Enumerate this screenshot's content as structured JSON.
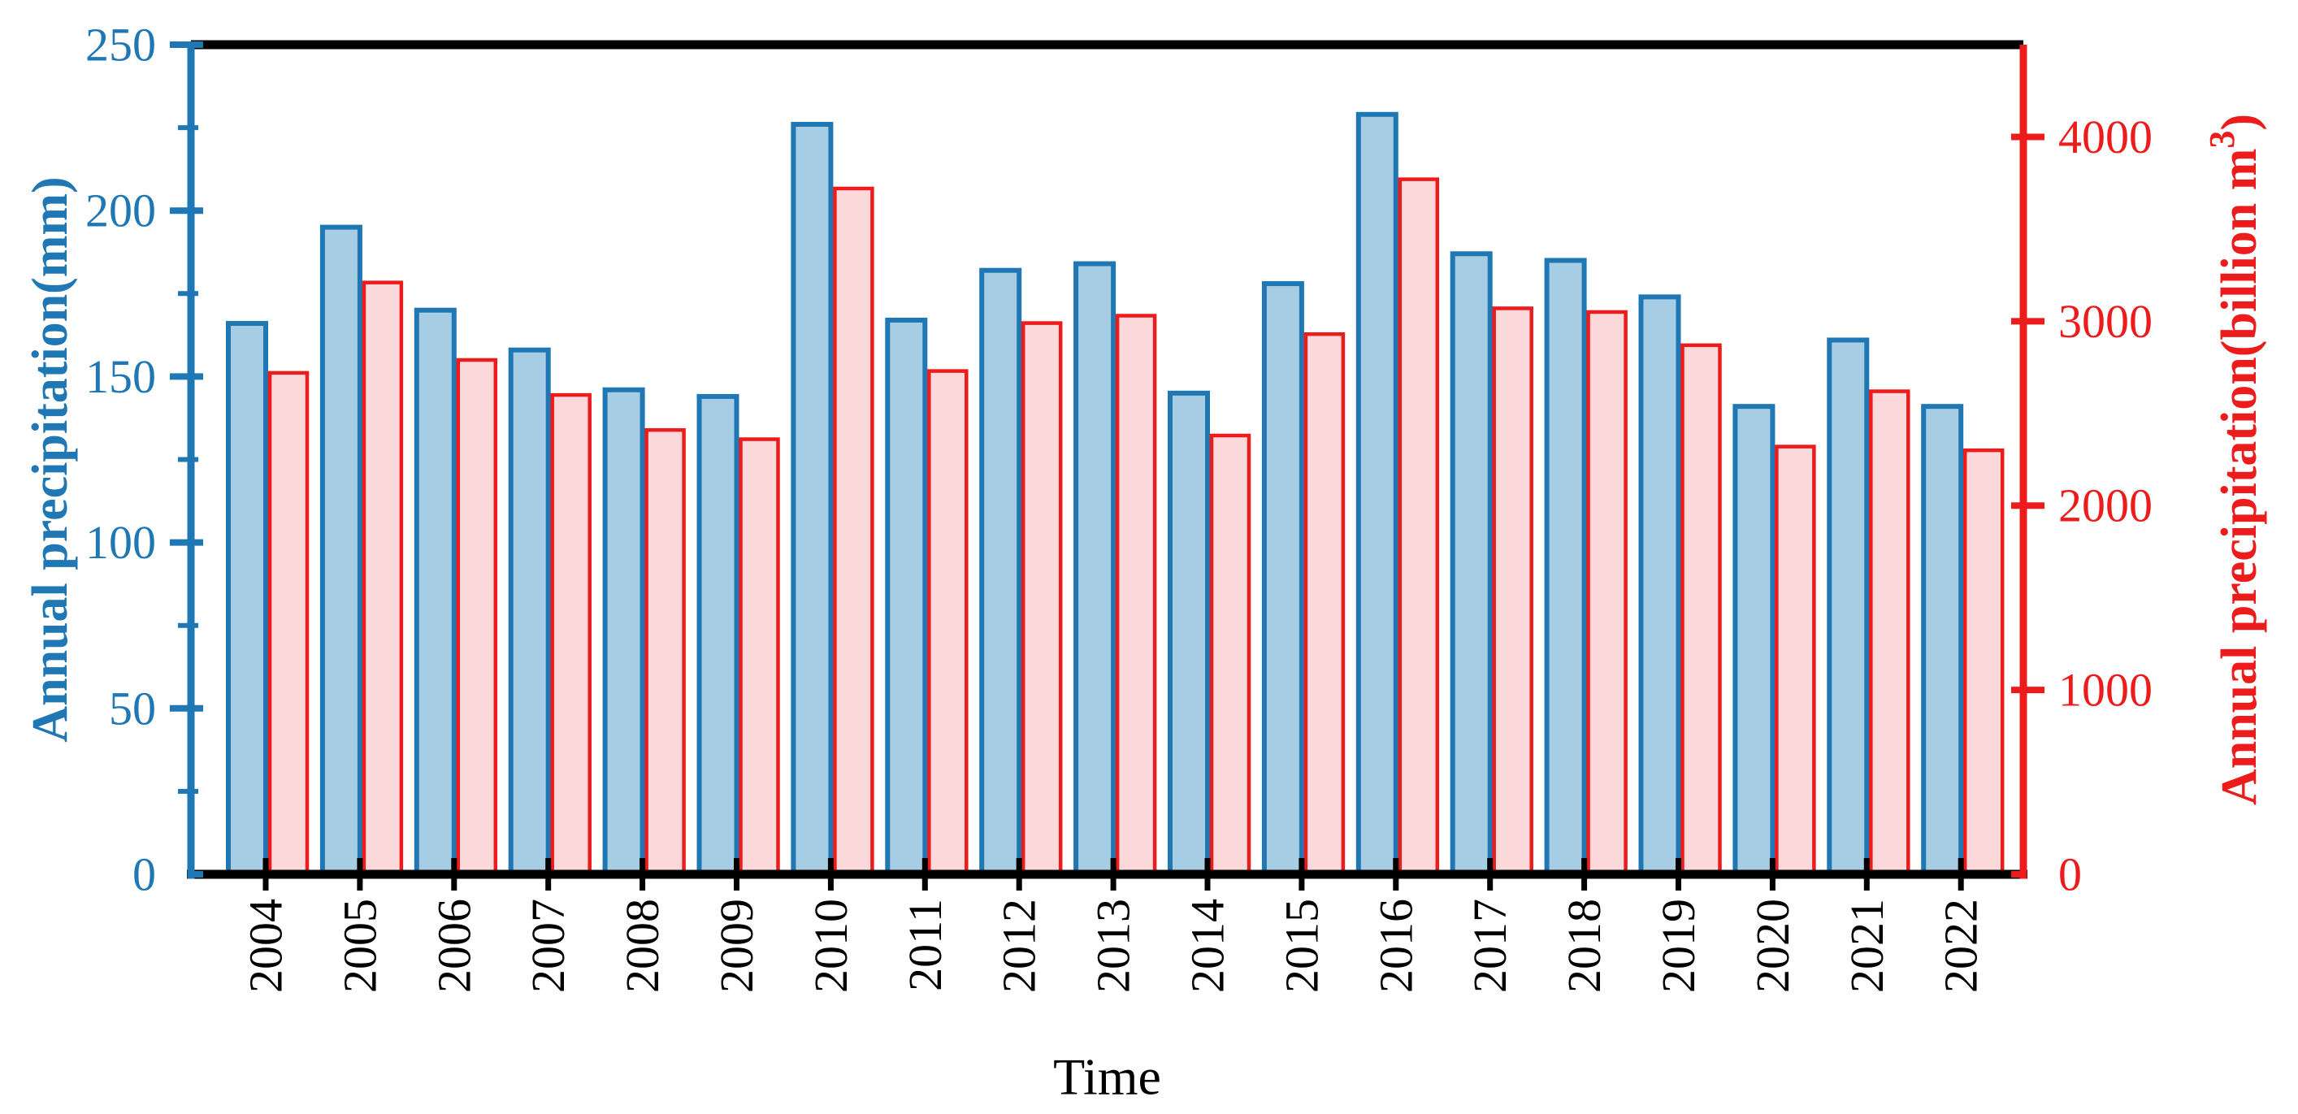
{
  "chart_data": {
    "type": "bar",
    "title": "",
    "xlabel": "Time",
    "categories": [
      "2004",
      "2005",
      "2006",
      "2007",
      "2008",
      "2009",
      "2010",
      "2011",
      "2012",
      "2013",
      "2014",
      "2015",
      "2016",
      "2017",
      "2018",
      "2019",
      "2020",
      "2021",
      "2022"
    ],
    "series": [
      {
        "name": "Annual precipitation(mm)",
        "axis": "left",
        "fill_color": "#A6CDE4",
        "border_color": "#1F77B4",
        "values": [
          166,
          195,
          170,
          158,
          146,
          144,
          226,
          167,
          182,
          184,
          145,
          178,
          229,
          187,
          185,
          174,
          141,
          161,
          141
        ]
      },
      {
        "name": "Annual precipitation(billion m3)",
        "axis": "right",
        "fill_color": "#FBD9DB",
        "border_color": "#EC1C1C",
        "values": [
          2720,
          3210,
          2790,
          2600,
          2410,
          2360,
          3720,
          2730,
          2990,
          3030,
          2380,
          2930,
          3770,
          3070,
          3050,
          2870,
          2320,
          2620,
          2300
        ]
      }
    ],
    "left_axis": {
      "label": "Annual precipitation(mm)",
      "min": 0,
      "max": 250,
      "major_ticks": [
        0,
        50,
        100,
        150,
        200,
        250
      ],
      "minor_ticks": [
        25,
        75,
        125,
        175,
        225
      ],
      "color": "#1F77B4"
    },
    "right_axis": {
      "label_base": "Annual precipitation(billion m",
      "label_sup": "3",
      "label_close": ")",
      "min": 0,
      "max": 4500,
      "major_ticks": [
        0,
        1000,
        2000,
        3000,
        4000
      ],
      "color": "#EC1C1C"
    },
    "x_axis": {
      "label": "Time",
      "color": "#000000"
    },
    "layout": {
      "grid": "off",
      "legend": "none",
      "bar_style": "paired side-by-side, blue left of center, pink right of center, tick at pair boundary"
    }
  }
}
